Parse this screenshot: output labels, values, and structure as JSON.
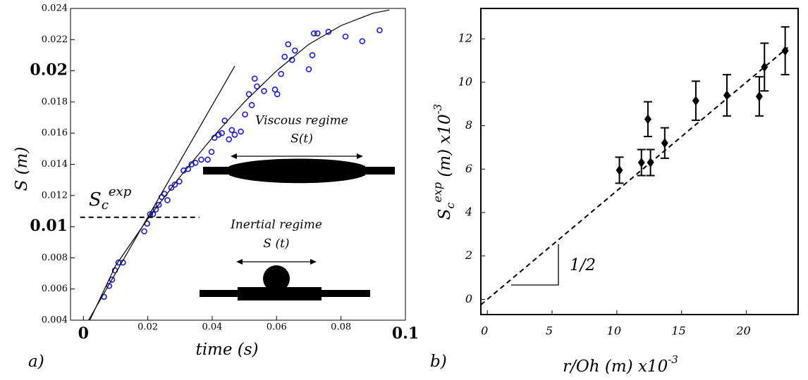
{
  "chart_data": [
    {
      "type": "scatter",
      "panel_label": "a)",
      "xlabel": "time (s)",
      "ylabel": "S (m)",
      "xlim": [
        -0.004,
        0.1
      ],
      "ylim": [
        0.004,
        0.024
      ],
      "xticks": [
        0,
        0.02,
        0.04,
        0.06,
        0.08,
        0.1
      ],
      "yticks": [
        0.004,
        0.006,
        0.008,
        0.01,
        0.012,
        0.014,
        0.016,
        0.018,
        0.02,
        0.022,
        0.024
      ],
      "series": [
        {
          "color": "#1a1adb",
          "marker": "circle",
          "x": [
            0.0064,
            0.008,
            0.0089,
            0.0098,
            0.0109,
            0.0123,
            0.0189,
            0.0198,
            0.0207,
            0.0216,
            0.0225,
            0.0234,
            0.0243,
            0.0252,
            0.0261,
            0.0273,
            0.0284,
            0.0298,
            0.0311,
            0.0325,
            0.0336,
            0.0348,
            0.0366,
            0.0386,
            0.0398,
            0.0407,
            0.042,
            0.043,
            0.0439,
            0.0452,
            0.0461,
            0.047,
            0.0489,
            0.0502,
            0.0514,
            0.0523,
            0.0532,
            0.0539,
            0.0561,
            0.0595,
            0.0602,
            0.0614,
            0.0625,
            0.0636,
            0.0648,
            0.0657,
            0.07,
            0.0711,
            0.0716,
            0.0727,
            0.0761,
            0.0814,
            0.0866,
            0.092
          ],
          "values": [
            0.0055,
            0.0062,
            0.0066,
            0.0072,
            0.0077,
            0.0077,
            0.0097,
            0.0102,
            0.0108,
            0.0108,
            0.0111,
            0.0114,
            0.0119,
            0.0121,
            0.0117,
            0.0125,
            0.0127,
            0.0129,
            0.0136,
            0.0137,
            0.014,
            0.0141,
            0.0143,
            0.0143,
            0.0148,
            0.0157,
            0.0159,
            0.016,
            0.0168,
            0.0156,
            0.0162,
            0.0159,
            0.0161,
            0.0172,
            0.0185,
            0.0178,
            0.0195,
            0.019,
            0.0187,
            0.0188,
            0.0185,
            0.0198,
            0.0209,
            0.0217,
            0.0207,
            0.0213,
            0.0201,
            0.021,
            0.0224,
            0.0224,
            0.0225,
            0.0222,
            0.0219,
            0.0226
          ]
        },
        {
          "color": "#000000",
          "marker": "line",
          "x": [
            0.002,
            0.01,
            0.02,
            0.03,
            0.04,
            0.05,
            0.06,
            0.07,
            0.08,
            0.09,
            0.095
          ],
          "values": [
            0.004,
            0.0075,
            0.0105,
            0.0132,
            0.0157,
            0.018,
            0.02,
            0.0217,
            0.0229,
            0.0237,
            0.0239
          ]
        },
        {
          "color": "#000000",
          "marker": "line",
          "x": [
            0.0016,
            0.047
          ],
          "values": [
            0.004,
            0.0203
          ]
        },
        {
          "color": "#000000",
          "marker": "dashed-line",
          "x": [
            -0.001,
            0.036
          ],
          "values": [
            0.0106,
            0.0106
          ]
        }
      ],
      "annotations": {
        "sc": {
          "main": "S",
          "sub": "c",
          "sup": "exp"
        },
        "viscous": "Viscous regime",
        "viscous_s": "S(t)",
        "inertial": "Inertial regime",
        "inertial_s": "S (t)"
      }
    },
    {
      "type": "scatter",
      "panel_label": "b)",
      "xlabel": {
        "main": "r/Oh (m) x10",
        "sup": "-3"
      },
      "ylabel": {
        "main": "S",
        "sub": "c",
        "sup": "exp",
        "unit": " (m) x10",
        "unit_sup": "-3"
      },
      "xlim": [
        -0.5,
        24
      ],
      "ylim": [
        -0.7,
        13.4
      ],
      "xticks": [
        0,
        5,
        10,
        15,
        20
      ],
      "yticks": [
        0,
        2,
        4,
        6,
        8,
        10,
        12
      ],
      "series": [
        {
          "color": "#000000",
          "marker": "diamond",
          "x": [
            10.2,
            11.9,
            12.4,
            12.6,
            13.7,
            16.1,
            18.5,
            21.0,
            21.4,
            23.0
          ],
          "values": [
            5.95,
            6.3,
            8.3,
            6.3,
            7.2,
            9.15,
            9.4,
            9.35,
            10.7,
            11.45
          ],
          "errors": [
            0.6,
            0.6,
            0.8,
            0.6,
            0.7,
            0.9,
            0.95,
            0.9,
            1.1,
            1.1
          ]
        },
        {
          "color": "#000000",
          "marker": "dashed-line",
          "x": [
            -0.5,
            23.2
          ],
          "values": [
            -0.25,
            11.6
          ]
        }
      ],
      "slope_label": "1/2"
    }
  ]
}
